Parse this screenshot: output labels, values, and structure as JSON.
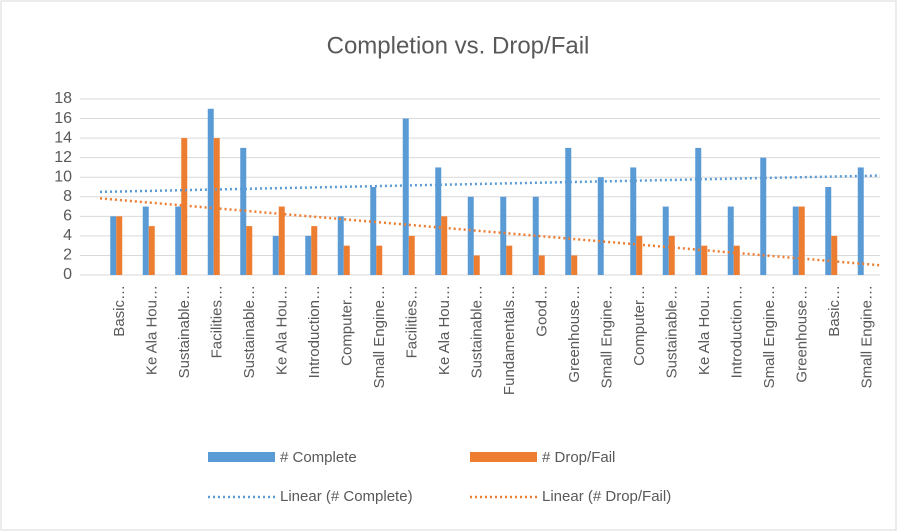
{
  "chart_data": {
    "type": "bar",
    "title": "Completion vs. Drop/Fail",
    "categories": [
      "Basic…",
      "Ke Ala Hou…",
      "Sustainable…",
      "Facilities…",
      "Sustainable…",
      "Ke Ala Hou…",
      "Introduction…",
      "Computer…",
      "Small Engine…",
      "Facilities…",
      "Ke Ala Hou…",
      "Sustainable…",
      "Fundamentals…",
      "Good…",
      "Greenhouse…",
      "Small Engine…",
      "Computer…",
      "Sustainable…",
      "Ke Ala Hou…",
      "Introduction…",
      "Small Engine…",
      "Greenhouse…",
      "Basic…",
      "Small Engine…"
    ],
    "series": [
      {
        "name": "# Complete",
        "color": "#5b9bd5",
        "trendline": "Linear (# Complete)",
        "values": [
          6,
          7,
          7,
          17,
          13,
          4,
          4,
          6,
          9,
          16,
          11,
          8,
          8,
          8,
          13,
          10,
          11,
          7,
          13,
          7,
          12,
          7,
          9,
          11
        ]
      },
      {
        "name": "# Drop/Fail",
        "color": "#ed7d31",
        "trendline": "Linear (# Drop/Fail)",
        "values": [
          6,
          5,
          14,
          14,
          5,
          7,
          5,
          3,
          3,
          4,
          6,
          2,
          3,
          2,
          2,
          0,
          4,
          4,
          3,
          3,
          0,
          7,
          4,
          0
        ]
      }
    ],
    "ylim": [
      0,
      18
    ],
    "yticks": [
      0,
      2,
      4,
      6,
      8,
      10,
      12,
      14,
      16,
      18
    ],
    "grid": true
  }
}
